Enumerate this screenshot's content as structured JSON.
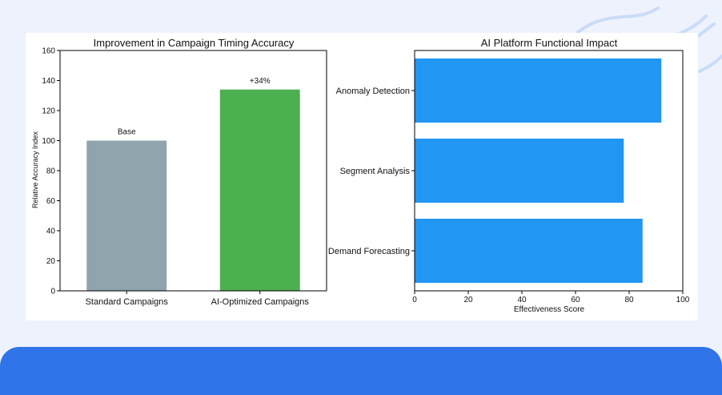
{
  "colors": {
    "page_background": "#eef2fc",
    "bar_standard": "#90a4ae",
    "bar_ai": "#4caf50",
    "bar_functional": "#2196f3",
    "footer_band": "#2f74e8"
  },
  "chart_data": [
    {
      "type": "bar",
      "title": "Improvement in Campaign Timing Accuracy",
      "xlabel": "",
      "ylabel": "Relative Accuracy Index",
      "categories": [
        "Standard Campaigns",
        "AI-Optimized Campaigns"
      ],
      "values": [
        100,
        134
      ],
      "bar_labels": [
        "Base",
        "+34%"
      ],
      "bar_colors": [
        "#90a4ae",
        "#4caf50"
      ],
      "ylim": [
        0,
        160
      ],
      "yticks": [
        0,
        20,
        40,
        60,
        80,
        100,
        120,
        140,
        160
      ],
      "grid": false
    },
    {
      "type": "bar",
      "orientation": "horizontal",
      "title": "AI Platform Functional Impact",
      "xlabel": "Effectiveness Score",
      "ylabel": "",
      "categories": [
        "Anomaly Detection",
        "Segment Analysis",
        "Demand Forecasting"
      ],
      "values": [
        92,
        78,
        85
      ],
      "bar_color": "#2196f3",
      "xlim": [
        0,
        100
      ],
      "xticks": [
        0,
        20,
        40,
        60,
        80,
        100
      ],
      "grid": false
    }
  ]
}
